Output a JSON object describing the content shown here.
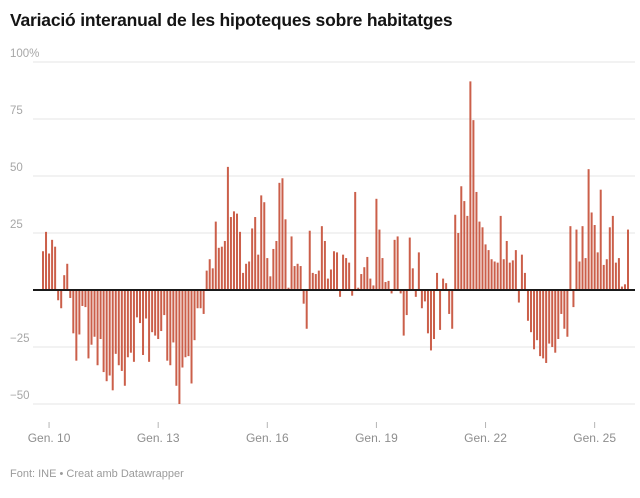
{
  "source": "Font: INE • Creat amb Datawrapper",
  "chart_data": {
    "type": "bar",
    "title": "Variació interanual de les hipoteques sobre habitatges",
    "unit": "%",
    "frequency": "monthly",
    "first_bar_month": "2009-11",
    "last_bar_month": "2025-12",
    "values": [
      17,
      25.5,
      16,
      22,
      19,
      -4.5,
      -8,
      6.5,
      11.5,
      -3.5,
      -19,
      -31,
      -19.5,
      -7,
      -7.5,
      -30,
      -24,
      -20.5,
      -33,
      -21.5,
      -36,
      -40,
      -37.5,
      -44,
      -28,
      -33,
      -35.5,
      -42,
      -29.5,
      -27.5,
      -31.5,
      -12,
      -14.5,
      -28.5,
      -12.5,
      -31.5,
      -18.5,
      -20,
      -21.5,
      -18,
      -11,
      -31,
      -33,
      -23,
      -42,
      -50,
      -34,
      -29.5,
      -29,
      -41,
      -22,
      -8,
      -8,
      -10.5,
      8.5,
      13.5,
      9.5,
      30,
      18.5,
      19,
      21.5,
      54,
      32,
      34.5,
      33.5,
      25.5,
      7.5,
      11.5,
      12.5,
      27,
      32,
      15.5,
      41.5,
      38.5,
      14,
      6,
      18,
      21.5,
      47,
      49,
      31,
      1,
      23.5,
      10.5,
      11.5,
      10.5,
      -6,
      -17,
      26,
      7.5,
      7,
      8.5,
      28,
      21.5,
      5,
      9,
      17,
      16.5,
      -3,
      15.5,
      14,
      12,
      -2.5,
      43,
      1,
      7,
      10,
      14.5,
      5,
      2,
      40,
      26.5,
      14,
      3.5,
      4,
      -1.5,
      22,
      23.5,
      -1.5,
      -20,
      -11,
      23,
      9.5,
      -3,
      16.5,
      -8,
      -5,
      -19,
      -26.5,
      -21.5,
      7.5,
      -17.5,
      5,
      3,
      -10.5,
      -17,
      33,
      25,
      45.5,
      39,
      32.5,
      91.5,
      74.5,
      43,
      30,
      27.5,
      20,
      17.5,
      13.5,
      12.5,
      12,
      32.5,
      13.5,
      21.5,
      12,
      13,
      17.5,
      -5.5,
      15.5,
      7.5,
      -13.5,
      -18.5,
      -26,
      -22,
      -29,
      -30,
      -32,
      -23.5,
      -25,
      -27.5,
      -21.5,
      -10.5,
      -17,
      -20.5,
      28,
      -7.5,
      26.5,
      12.5,
      28,
      14,
      53,
      34,
      28.5,
      16.5,
      44,
      11,
      13.5,
      27.5,
      32.5,
      12,
      14,
      1.5,
      2.5,
      26.5
    ],
    "y_axis": {
      "baseline": 0,
      "range": [
        -57,
        105
      ],
      "ticks": [
        {
          "value": 100,
          "label": "100%"
        },
        {
          "value": 75,
          "label": "75"
        },
        {
          "value": 50,
          "label": "50"
        },
        {
          "value": 25,
          "label": "25"
        },
        {
          "value": -25,
          "label": "−25"
        },
        {
          "value": -50,
          "label": "−50"
        }
      ]
    },
    "x_axis": {
      "ticks": [
        {
          "index": 2,
          "label": "Gen. 10"
        },
        {
          "index": 38,
          "label": "Gen. 13"
        },
        {
          "index": 74,
          "label": "Gen. 16"
        },
        {
          "index": 110,
          "label": "Gen. 19"
        },
        {
          "index": 146,
          "label": "Gen. 22"
        },
        {
          "index": 182,
          "label": "Gen. 25"
        }
      ]
    },
    "bar_color": "#cb5f4a",
    "grid": true,
    "gridline_color": "#e5e5e5",
    "tick_color": "#b5b5b5",
    "baseline_color": "#1a1a1a",
    "legend": "none"
  }
}
